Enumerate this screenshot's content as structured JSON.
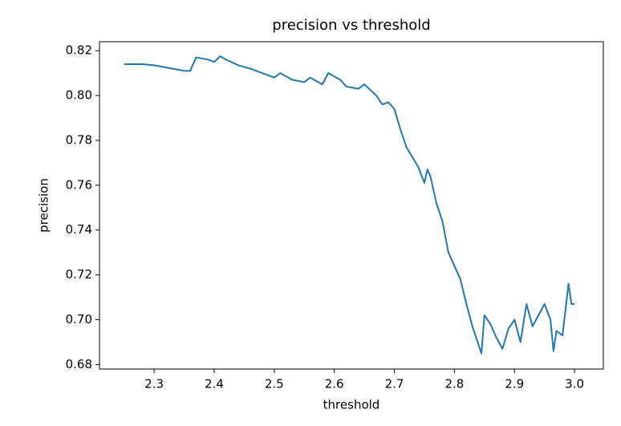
{
  "chart_data": {
    "type": "line",
    "title": "precision vs threshold",
    "xlabel": "threshold",
    "ylabel": "precision",
    "x": [
      2.25,
      2.28,
      2.3,
      2.33,
      2.35,
      2.36,
      2.37,
      2.39,
      2.4,
      2.41,
      2.42,
      2.44,
      2.46,
      2.48,
      2.5,
      2.51,
      2.53,
      2.55,
      2.56,
      2.58,
      2.59,
      2.61,
      2.62,
      2.64,
      2.65,
      2.67,
      2.68,
      2.69,
      2.7,
      2.71,
      2.72,
      2.74,
      2.75,
      2.755,
      2.76,
      2.77,
      2.78,
      2.79,
      2.8,
      2.81,
      2.82,
      2.83,
      2.84,
      2.845,
      2.85,
      2.86,
      2.87,
      2.88,
      2.89,
      2.9,
      2.91,
      2.92,
      2.93,
      2.95,
      2.96,
      2.965,
      2.97,
      2.98,
      2.99,
      2.995,
      3.0
    ],
    "series": [
      {
        "color": "#1f77b4",
        "values": [
          0.814,
          0.814,
          0.8135,
          0.812,
          0.811,
          0.811,
          0.817,
          0.816,
          0.815,
          0.8175,
          0.816,
          0.8135,
          0.812,
          0.81,
          0.808,
          0.81,
          0.807,
          0.806,
          0.808,
          0.805,
          0.81,
          0.807,
          0.804,
          0.803,
          0.805,
          0.8,
          0.796,
          0.797,
          0.794,
          0.785,
          0.777,
          0.768,
          0.761,
          0.767,
          0.764,
          0.752,
          0.744,
          0.73,
          0.724,
          0.718,
          0.707,
          0.697,
          0.689,
          0.685,
          0.702,
          0.698,
          0.692,
          0.687,
          0.696,
          0.7,
          0.69,
          0.707,
          0.697,
          0.707,
          0.7,
          0.686,
          0.695,
          0.693,
          0.716,
          0.707,
          0.707
        ]
      }
    ],
    "xlim": [
      2.209,
      3.048
    ],
    "ylim": [
      0.678,
      0.824
    ],
    "xticks": [
      2.3,
      2.4,
      2.5,
      2.6,
      2.7,
      2.8,
      2.9,
      {
        "value": 3,
        "label": "3.0"
      }
    ],
    "yticks": [
      0.68,
      {
        "value": 0.7,
        "label": "0.70"
      },
      0.72,
      0.74,
      0.76,
      0.78,
      {
        "value": 0.8,
        "label": "0.80"
      },
      0.82
    ]
  }
}
